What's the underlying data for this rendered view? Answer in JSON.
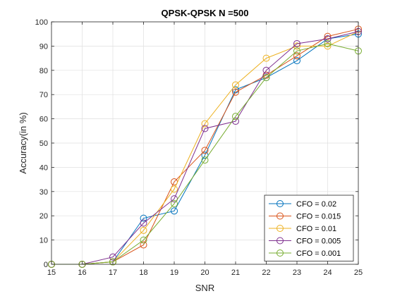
{
  "chart_data": {
    "type": "line",
    "title": "QPSK-QPSK N =500",
    "xlabel": "SNR",
    "ylabel": "Accuracy(in %)",
    "xlim": [
      15,
      25
    ],
    "ylim": [
      0,
      100
    ],
    "x_ticks": [
      15,
      16,
      17,
      18,
      19,
      20,
      21,
      22,
      23,
      24,
      25
    ],
    "y_ticks": [
      0,
      10,
      20,
      30,
      40,
      50,
      60,
      70,
      80,
      90,
      100
    ],
    "grid": true,
    "legend_position": "bottom-right",
    "marker": "circle",
    "x": [
      15,
      16,
      17,
      18,
      19,
      20,
      21,
      22,
      23,
      24,
      25
    ],
    "series": [
      {
        "name": "CFO = 0.02",
        "color": "#0072BD",
        "values": [
          0,
          0,
          1,
          19,
          22,
          45,
          72,
          77,
          84,
          93,
          95
        ]
      },
      {
        "name": "CFO = 0.015",
        "color": "#D95319",
        "values": [
          0,
          0,
          1,
          8,
          34,
          47,
          71,
          78,
          86,
          94,
          97
        ]
      },
      {
        "name": "CFO = 0.01",
        "color": "#EDB120",
        "values": [
          0,
          0,
          1,
          14,
          31,
          58,
          74,
          85,
          90,
          90,
          96
        ]
      },
      {
        "name": "CFO = 0.005",
        "color": "#7E2F8E",
        "values": [
          0,
          0,
          3,
          17,
          27,
          56,
          59,
          80,
          91,
          93,
          96
        ]
      },
      {
        "name": "CFO = 0.001",
        "color": "#77AC30",
        "values": [
          0,
          0,
          1,
          10,
          25,
          43,
          61,
          77,
          88,
          91,
          88
        ]
      }
    ]
  }
}
